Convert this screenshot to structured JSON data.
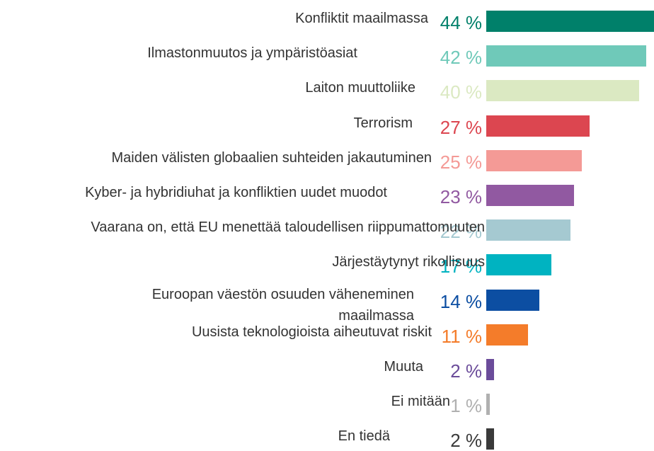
{
  "chart_data": {
    "type": "bar",
    "orientation": "horizontal",
    "categories": [
      "Konfliktit maailmassa",
      "Ilmastonmuutos ja ympäristöasiat",
      "Laiton muuttoliike",
      "Terrorism",
      "Maiden välisten globaalien suhteiden jakautuminen",
      "Kyber- ja hybridiuhat ja konfliktien uudet muodot",
      "Vaarana on, että EU menettää taloudellisen riippumattomuuten",
      "Järjestäytynyt rikollisuus",
      "Euroopan väestön osuuden väheneminen maailmassa",
      "Uusista teknologioista aiheutuvat riskit",
      "Muuta",
      "Ei mitään",
      "En tiedä"
    ],
    "values": [
      44,
      42,
      40,
      27,
      25,
      23,
      22,
      17,
      14,
      11,
      2,
      1,
      2
    ],
    "value_labels": [
      "44 %",
      "42 %",
      "40 %",
      "27 %",
      "25 %",
      "23 %",
      "22 %",
      "17 %",
      "14 %",
      "11 %",
      "2 %",
      "1 %",
      "2 %"
    ],
    "colors": [
      "#00806a",
      "#6fc9b9",
      "#dbe9c2",
      "#dc4650",
      "#f49a96",
      "#9159a1",
      "#a5c9d1",
      "#00b3c1",
      "#0c4ea2",
      "#f47c2a",
      "#6b4c9a",
      "#b0b0b0",
      "#3a3a3a"
    ]
  }
}
